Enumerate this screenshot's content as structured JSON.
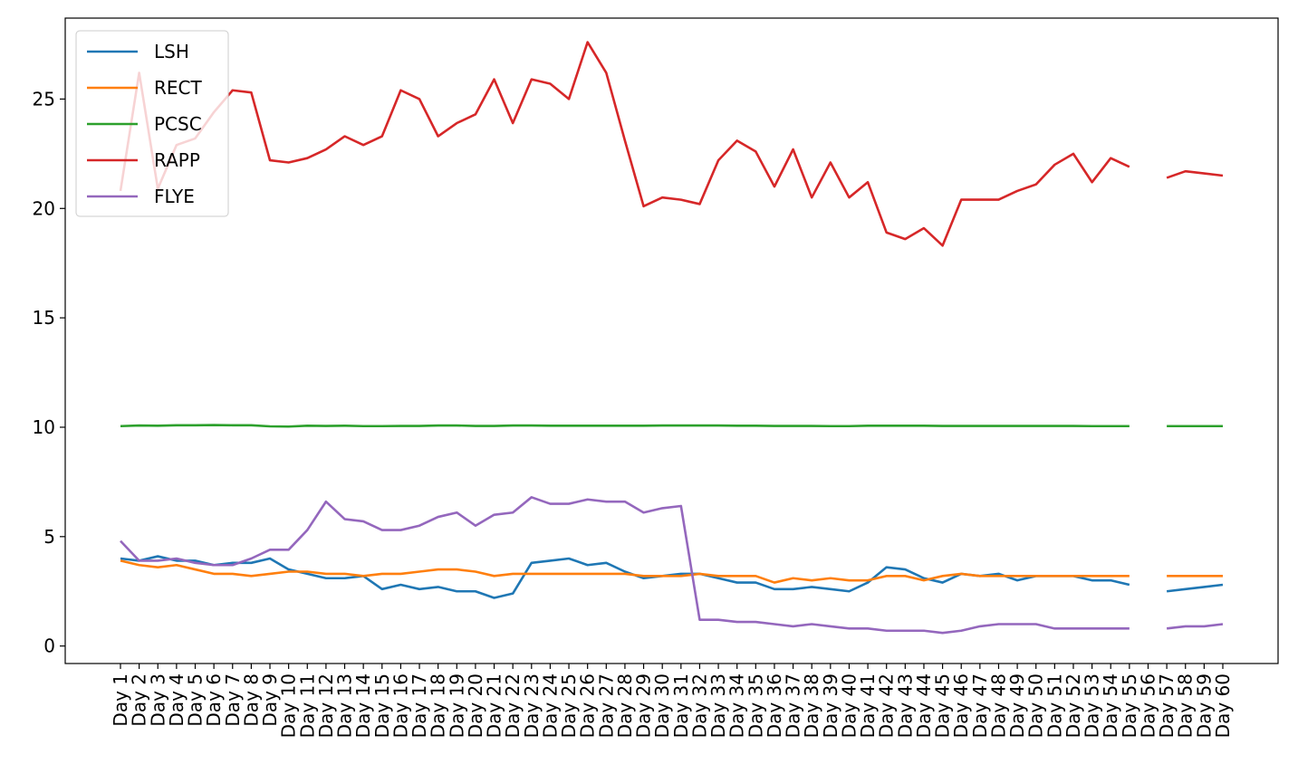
{
  "chart_data": {
    "type": "line",
    "title": "",
    "xlabel": "",
    "ylabel": "",
    "ylim": [
      -0.8,
      28.7
    ],
    "yticks": [
      0,
      5,
      10,
      15,
      20,
      25
    ],
    "grid": false,
    "legend_position": "upper-left",
    "categories": [
      "Day 1",
      "Day 2",
      "Day 3",
      "Day 4",
      "Day 5",
      "Day 6",
      "Day 7",
      "Day 8",
      "Day 9",
      "Day 10",
      "Day 11",
      "Day 12",
      "Day 13",
      "Day 14",
      "Day 15",
      "Day 16",
      "Day 17",
      "Day 18",
      "Day 19",
      "Day 20",
      "Day 21",
      "Day 22",
      "Day 23",
      "Day 24",
      "Day 25",
      "Day 26",
      "Day 27",
      "Day 28",
      "Day 29",
      "Day 30",
      "Day 31",
      "Day 32",
      "Day 33",
      "Day 34",
      "Day 35",
      "Day 36",
      "Day 37",
      "Day 38",
      "Day 39",
      "Day 40",
      "Day 41",
      "Day 42",
      "Day 43",
      "Day 44",
      "Day 45",
      "Day 46",
      "Day 47",
      "Day 48",
      "Day 49",
      "Day 50",
      "Day 51",
      "Day 52",
      "Day 53",
      "Day 54",
      "Day 55",
      "Day 56",
      "Day 57",
      "Day 58",
      "Day 59",
      "Day 60"
    ],
    "series": [
      {
        "name": "LSH",
        "color": "#1f77b4",
        "values": [
          4.0,
          3.9,
          4.1,
          3.9,
          3.9,
          3.7,
          3.8,
          3.8,
          4.0,
          3.5,
          3.3,
          3.1,
          3.1,
          3.2,
          2.6,
          2.8,
          2.6,
          2.7,
          2.5,
          2.5,
          2.2,
          2.4,
          3.8,
          3.9,
          4.0,
          3.7,
          3.8,
          3.4,
          3.1,
          3.2,
          3.3,
          3.3,
          3.1,
          2.9,
          2.9,
          2.6,
          2.6,
          2.7,
          2.6,
          2.5,
          2.9,
          3.6,
          3.5,
          3.1,
          2.9,
          3.3,
          3.2,
          3.3,
          3.0,
          3.2,
          3.2,
          3.2,
          3.0,
          3.0,
          2.8,
          null,
          2.5,
          2.6,
          2.7,
          2.8
        ]
      },
      {
        "name": "RECT",
        "color": "#ff7f0e",
        "values": [
          3.9,
          3.7,
          3.6,
          3.7,
          3.5,
          3.3,
          3.3,
          3.2,
          3.3,
          3.4,
          3.4,
          3.3,
          3.3,
          3.2,
          3.3,
          3.3,
          3.4,
          3.5,
          3.5,
          3.4,
          3.2,
          3.3,
          3.3,
          3.3,
          3.3,
          3.3,
          3.3,
          3.3,
          3.2,
          3.2,
          3.2,
          3.3,
          3.2,
          3.2,
          3.2,
          2.9,
          3.1,
          3.0,
          3.1,
          3.0,
          3.0,
          3.2,
          3.2,
          3.0,
          3.2,
          3.3,
          3.2,
          3.2,
          3.2,
          3.2,
          3.2,
          3.2,
          3.2,
          3.2,
          3.2,
          null,
          3.2,
          3.2,
          3.2,
          3.2
        ]
      },
      {
        "name": "PCSC",
        "color": "#2ca02c",
        "values": [
          10.05,
          10.08,
          10.07,
          10.09,
          10.09,
          10.1,
          10.09,
          10.09,
          10.04,
          10.03,
          10.07,
          10.06,
          10.07,
          10.05,
          10.05,
          10.06,
          10.06,
          10.08,
          10.08,
          10.06,
          10.06,
          10.08,
          10.08,
          10.07,
          10.07,
          10.07,
          10.07,
          10.07,
          10.07,
          10.08,
          10.08,
          10.08,
          10.08,
          10.07,
          10.07,
          10.06,
          10.06,
          10.06,
          10.05,
          10.05,
          10.07,
          10.07,
          10.07,
          10.07,
          10.06,
          10.06,
          10.06,
          10.06,
          10.06,
          10.06,
          10.06,
          10.06,
          10.05,
          10.05,
          10.05,
          null,
          10.05,
          10.05,
          10.05,
          10.05
        ]
      },
      {
        "name": "RAPP",
        "color": "#d62728",
        "values": [
          20.8,
          26.2,
          20.9,
          22.9,
          23.2,
          24.4,
          25.4,
          25.3,
          22.2,
          22.1,
          22.3,
          22.7,
          23.3,
          22.9,
          23.3,
          25.4,
          25.0,
          23.3,
          23.9,
          24.3,
          25.9,
          23.9,
          25.9,
          25.7,
          25.0,
          27.6,
          26.2,
          23.1,
          20.1,
          20.5,
          20.4,
          20.2,
          22.2,
          23.1,
          22.6,
          21.0,
          22.7,
          20.5,
          22.1,
          20.5,
          21.2,
          18.9,
          18.6,
          19.1,
          18.3,
          20.4,
          20.4,
          20.4,
          20.8,
          21.1,
          22.0,
          22.5,
          21.2,
          22.3,
          21.9,
          null,
          21.4,
          21.7,
          21.6,
          21.5
        ]
      },
      {
        "name": "FLYE",
        "color": "#9467bd",
        "values": [
          4.8,
          3.9,
          3.9,
          4.0,
          3.8,
          3.7,
          3.7,
          4.0,
          4.4,
          4.4,
          5.3,
          6.6,
          5.8,
          5.7,
          5.3,
          5.3,
          5.5,
          5.9,
          6.1,
          5.5,
          6.0,
          6.1,
          6.8,
          6.5,
          6.5,
          6.7,
          6.6,
          6.6,
          6.1,
          6.3,
          6.4,
          1.2,
          1.2,
          1.1,
          1.1,
          1.0,
          0.9,
          1.0,
          0.9,
          0.8,
          0.8,
          0.7,
          0.7,
          0.7,
          0.6,
          0.7,
          0.9,
          1.0,
          1.0,
          1.0,
          0.8,
          0.8,
          0.8,
          0.8,
          0.8,
          null,
          0.8,
          0.9,
          0.9,
          1.0
        ]
      }
    ]
  }
}
